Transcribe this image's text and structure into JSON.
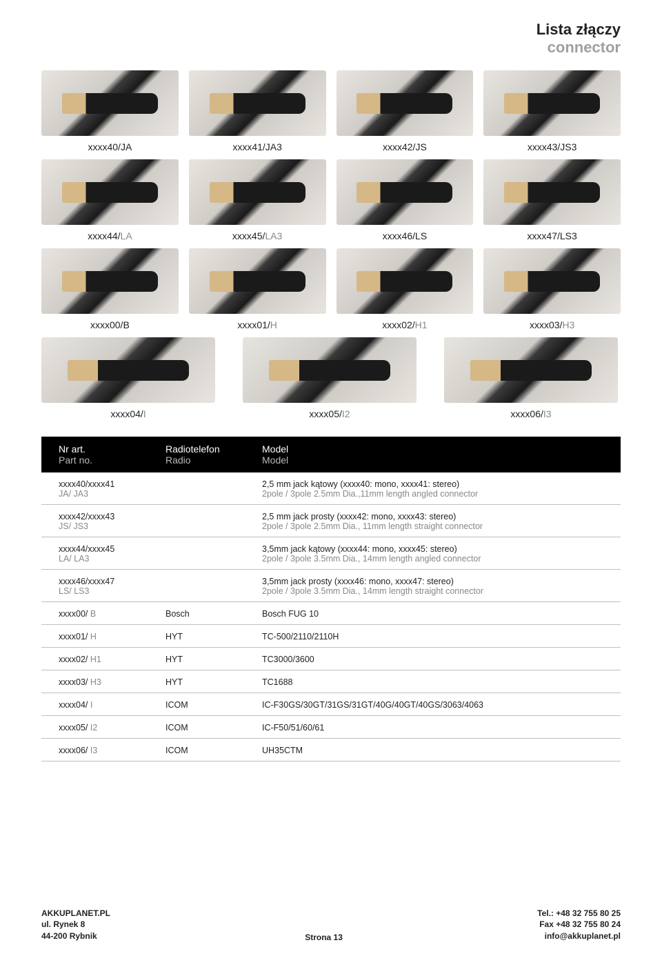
{
  "header": {
    "title_pl": "Lista złączy",
    "title_en": "connector"
  },
  "grid": {
    "row1": [
      {
        "code": "xxxx40/",
        "suffix_pl": "JA",
        "suffix_en": ""
      },
      {
        "code": "xxxx41/",
        "suffix_pl": "JA3",
        "suffix_en": ""
      },
      {
        "code": "xxxx42/",
        "suffix_pl": "JS",
        "suffix_en": ""
      },
      {
        "code": "xxxx43/",
        "suffix_pl": "JS3",
        "suffix_en": ""
      }
    ],
    "row2": [
      {
        "code": "xxxx44/",
        "suffix_pl": "",
        "suffix_en": "LA"
      },
      {
        "code": "xxxx45/",
        "suffix_pl": "",
        "suffix_en": "LA3"
      },
      {
        "code": "xxxx46/",
        "suffix_pl": "LS",
        "suffix_en": ""
      },
      {
        "code": "xxxx47/",
        "suffix_pl": "LS3",
        "suffix_en": ""
      }
    ],
    "row3": [
      {
        "code": "xxxx00/",
        "suffix_pl": "B",
        "suffix_en": ""
      },
      {
        "code": "xxxx01/",
        "suffix_pl": "",
        "suffix_en": "H"
      },
      {
        "code": "xxxx02/",
        "suffix_pl": "",
        "suffix_en": "H1"
      },
      {
        "code": "xxxx03/",
        "suffix_pl": "",
        "suffix_en": "H3"
      }
    ],
    "row4": [
      {
        "code": "xxxx04/",
        "suffix_pl": "",
        "suffix_en": "I"
      },
      {
        "code": "xxxx05/",
        "suffix_pl": "",
        "suffix_en": "I2"
      },
      {
        "code": "xxxx06/",
        "suffix_pl": "",
        "suffix_en": "I3"
      }
    ]
  },
  "table": {
    "header": {
      "c1_pl": "Nr art.",
      "c1_en": "Part no.",
      "c2_pl": "Radiotelefon",
      "c2_en": "Radio",
      "c3_pl": "Model",
      "c3_en": "Model"
    },
    "rows": [
      {
        "art_pl": "xxxx40/xxxx41",
        "art_en": "JA/ JA3",
        "radio": "",
        "model_pl": "2,5 mm jack kątowy (xxxx40: mono, xxxx41: stereo)",
        "model_en": "2pole / 3pole 2.5mm Dia.,11mm length angled connector"
      },
      {
        "art_pl": "xxxx42/xxxx43",
        "art_en": "JS/ JS3",
        "radio": "",
        "model_pl": "2,5 mm jack prosty (xxxx42: mono, xxxx43: stereo)",
        "model_en": "2pole / 3pole 2.5mm Dia., 11mm length straight connector"
      },
      {
        "art_pl": "xxxx44/xxxx45",
        "art_en": "LA/ LA3",
        "radio": "",
        "model_pl": "3,5mm jack kątowy (xxxx44: mono, xxxx45: stereo)",
        "model_en": "2pole / 3pole 3.5mm Dia., 14mm length angled connector"
      },
      {
        "art_pl": "xxxx46/xxxx47",
        "art_en": "LS/ LS3",
        "radio": "",
        "model_pl": "3,5mm jack prosty (xxxx46: mono, xxxx47: stereo)",
        "model_en": "2pole / 3pole 3.5mm Dia., 14mm length straight connector"
      },
      {
        "art_pl": "xxxx00/",
        "art_en": "B",
        "radio": "Bosch",
        "model_pl": "Bosch FUG 10",
        "model_en": "",
        "inline": true
      },
      {
        "art_pl": "xxxx01/",
        "art_en": "H",
        "radio": "HYT",
        "model_pl": "TC-500/2110/2110H",
        "model_en": "",
        "inline": true
      },
      {
        "art_pl": "xxxx02/",
        "art_en": "H1",
        "radio": "HYT",
        "model_pl": "TC3000/3600",
        "model_en": "",
        "inline": true
      },
      {
        "art_pl": "xxxx03/",
        "art_en": "H3",
        "radio": "HYT",
        "model_pl": "TC1688",
        "model_en": "",
        "inline": true
      },
      {
        "art_pl": "xxxx04/",
        "art_en": "I",
        "radio": "ICOM",
        "model_pl": "IC-F30GS/30GT/31GS/31GT/40G/40GT/40GS/3063/4063",
        "model_en": "",
        "inline": true
      },
      {
        "art_pl": "xxxx05/",
        "art_en": "I2",
        "radio": "ICOM",
        "model_pl": "IC-F50/51/60/61",
        "model_en": "",
        "inline": true
      },
      {
        "art_pl": "xxxx06/",
        "art_en": "I3",
        "radio": "ICOM",
        "model_pl": "UH35CTM",
        "model_en": "",
        "inline": true
      }
    ]
  },
  "footer": {
    "left_line1": "AKKUPLANET.PL",
    "left_line2": "ul. Rynek 8",
    "left_line3": "44-200 Rybnik",
    "center": "Strona 13",
    "right_line1": "Tel.: +48 32 755 80 25",
    "right_line2": "Fax +48 32 755 80 24",
    "right_line3": "info@akkuplanet.pl"
  },
  "colors": {
    "gray_text": "#888888",
    "header_bg": "#000000"
  }
}
